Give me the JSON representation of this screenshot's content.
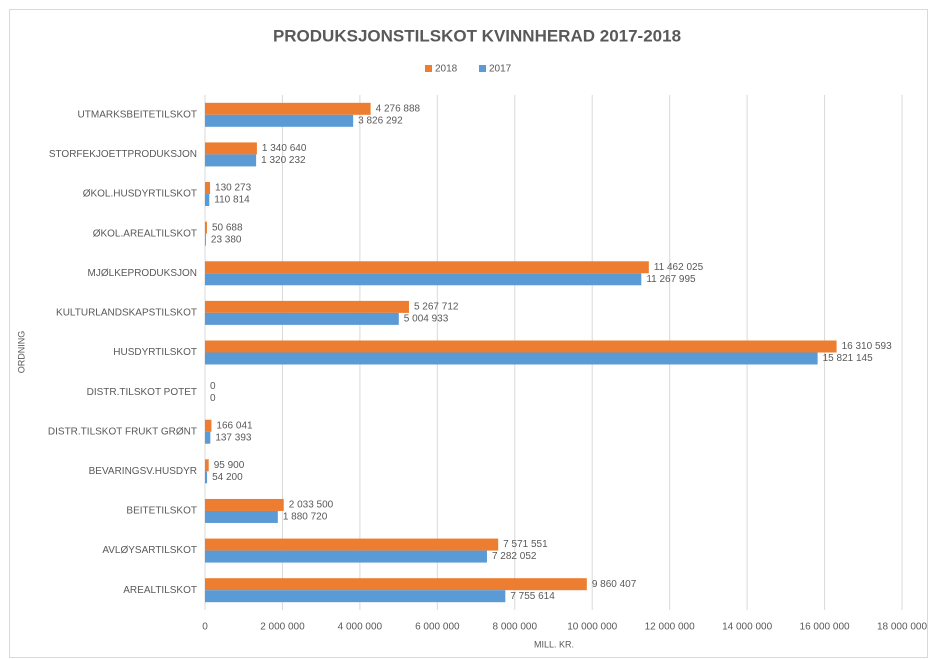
{
  "chart_data": {
    "type": "bar",
    "orientation": "horizontal",
    "title": "PRODUKSJONSTILSKOT KVINNHERAD 2017-2018",
    "x_label": "MILL. KR.",
    "y_label": "ORDNING",
    "categories": [
      "UTMARKSBEITETILSKOT",
      "STORFEKJOETTPRODUKSJON",
      "ØKOL.HUSDYRTILSKOT",
      "ØKOL.AREALTILSKOT",
      "MJØLKEPRODUKSJON",
      "KULTURLANDSKAPSTILSKOT",
      "HUSDYRTILSKOT",
      "DISTR.TILSKOT POTET",
      "DISTR.TILSKOT FRUKT GRØNT",
      "BEVARINGSV.HUSDYR",
      "BEITETILSKOT",
      "AVLØYSARTILSKOT",
      "AREALTILSKOT"
    ],
    "series": [
      {
        "name": "2018",
        "color": "#ed7d31",
        "values": [
          4276888,
          1340640,
          130273,
          50688,
          11462025,
          5267712,
          16310593,
          0,
          166041,
          95900,
          2033500,
          7571551,
          9860407
        ],
        "value_labels": [
          "4 276 888",
          "1 340 640",
          "130 273",
          "50 688",
          "11 462 025",
          "5 267 712",
          "16 310 593",
          "0",
          "166 041",
          "95 900",
          "2 033 500",
          "7 571 551",
          "9 860 407"
        ]
      },
      {
        "name": "2017",
        "color": "#5b9bd5",
        "values": [
          3826292,
          1320232,
          110814,
          23380,
          11267995,
          5004933,
          15821145,
          0,
          137393,
          54200,
          1880720,
          7282052,
          7755614
        ],
        "value_labels": [
          "3 826 292",
          "1 320 232",
          "110 814",
          "23 380",
          "11 267 995",
          "5 004 933",
          "15 821 145",
          "0",
          "137 393",
          "54 200",
          "1 880 720",
          "7 282 052",
          "7 755 614"
        ]
      }
    ],
    "xlim": [
      0,
      18000000
    ],
    "xticks": [
      0,
      {
        "value": 2000000,
        "label": "2 000 000"
      },
      {
        "value": 4000000,
        "label": "4 000 000"
      },
      {
        "value": 6000000,
        "label": "6 000 000"
      },
      {
        "value": 8000000,
        "label": "8 000 000"
      },
      {
        "value": 10000000,
        "label": "10 000 000"
      },
      {
        "value": 12000000,
        "label": "12 000 000"
      },
      {
        "value": 14000000,
        "label": "14 000 000"
      },
      {
        "value": 16000000,
        "label": "16 000 000"
      },
      {
        "value": 18000000,
        "label": "18 000 000"
      }
    ],
    "grid": true,
    "legend": "top"
  }
}
